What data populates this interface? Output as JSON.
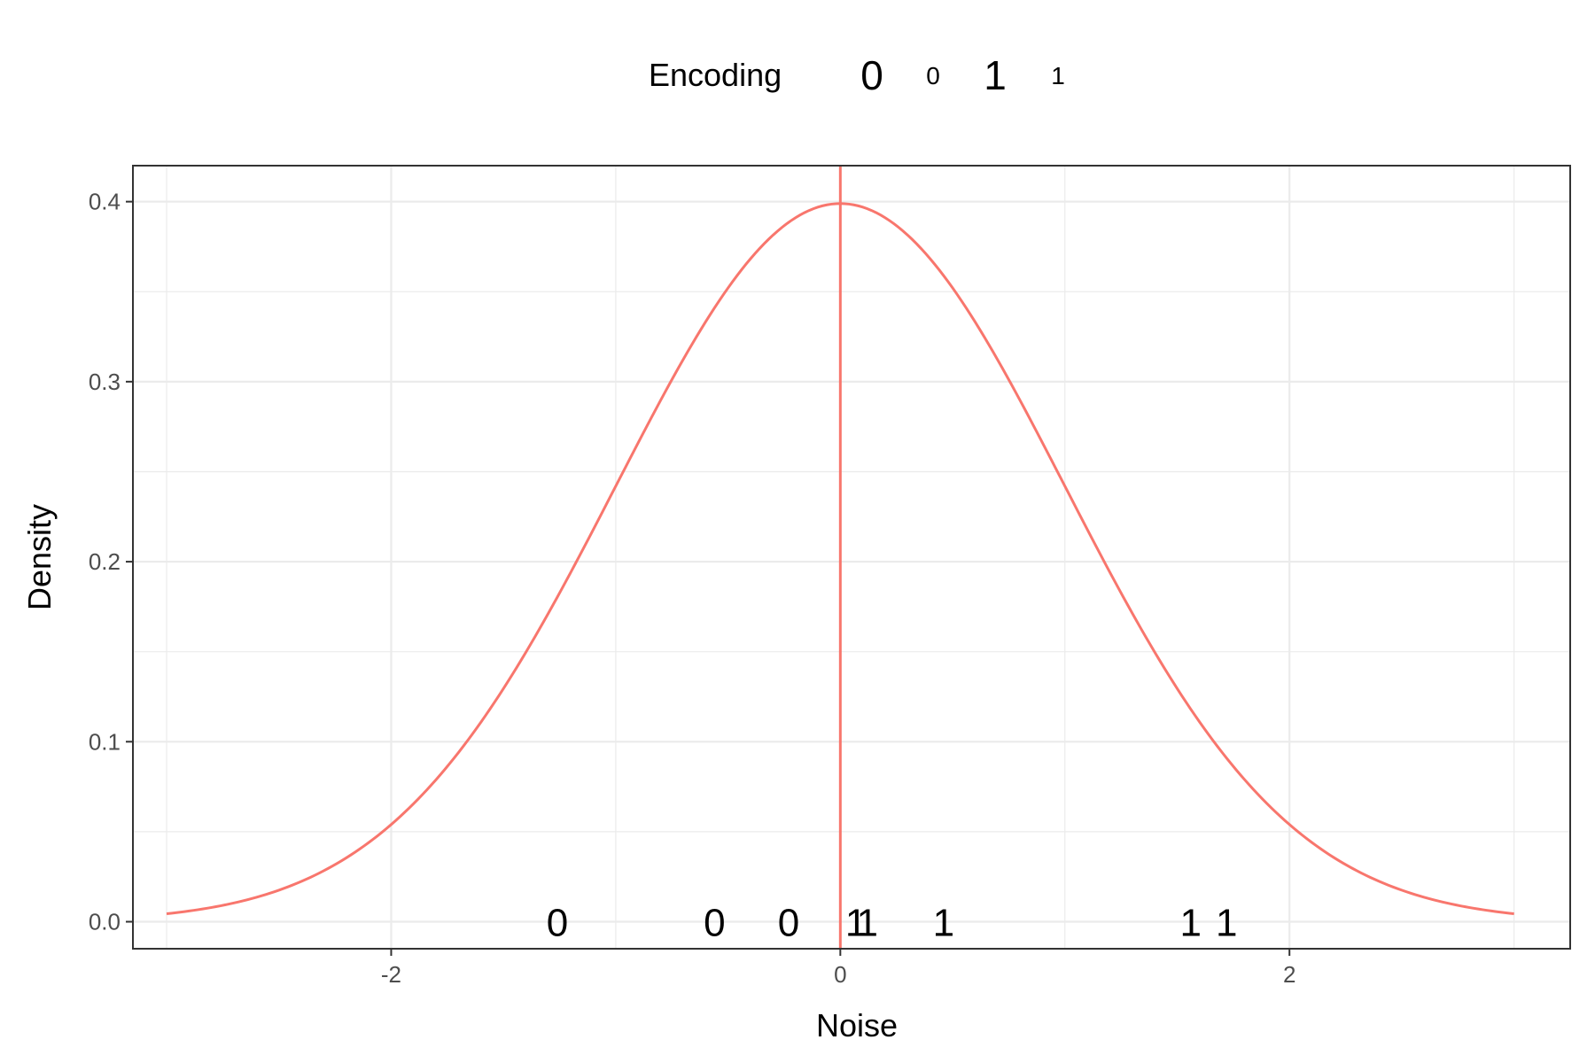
{
  "chart_data": {
    "type": "line",
    "title": "",
    "xlabel": "Noise",
    "ylabel": "Density",
    "xlim": [
      -3.15,
      3.25
    ],
    "ylim": [
      -0.015,
      0.42
    ],
    "x_ticks": [
      -2,
      0,
      2
    ],
    "x_tick_labels": [
      "-2",
      "0",
      "2"
    ],
    "x_minor_ticks": [
      -3,
      -1,
      1,
      3
    ],
    "y_ticks": [
      0.0,
      0.1,
      0.2,
      0.3,
      0.4
    ],
    "y_tick_labels": [
      "0.0",
      "0.1",
      "0.2",
      "0.3",
      "0.4"
    ],
    "y_minor_ticks": [
      0.05,
      0.15,
      0.25,
      0.35
    ],
    "grid": true,
    "curve": {
      "distribution": "standard normal density",
      "mean": 0,
      "sd": 1,
      "x_range": [
        -3,
        3
      ],
      "color": "#F8766D"
    },
    "vline": {
      "x": 0,
      "color": "#F8766D"
    },
    "points": [
      {
        "x": -1.26,
        "y": 0,
        "label": "0"
      },
      {
        "x": -0.56,
        "y": 0,
        "label": "0"
      },
      {
        "x": -0.23,
        "y": 0,
        "label": "0"
      },
      {
        "x": 0.07,
        "y": 0,
        "label": "1"
      },
      {
        "x": 0.12,
        "y": 0,
        "label": "1"
      },
      {
        "x": 0.46,
        "y": 0,
        "label": "1"
      },
      {
        "x": 1.56,
        "y": 0,
        "label": "1"
      },
      {
        "x": 1.72,
        "y": 0,
        "label": "1"
      }
    ],
    "legend": {
      "position": "top",
      "title": "Encoding",
      "entries": [
        {
          "label": "0",
          "emphasis": "large"
        },
        {
          "label": "0",
          "emphasis": "small"
        },
        {
          "label": "1",
          "emphasis": "large"
        },
        {
          "label": "1",
          "emphasis": "small"
        }
      ]
    }
  }
}
